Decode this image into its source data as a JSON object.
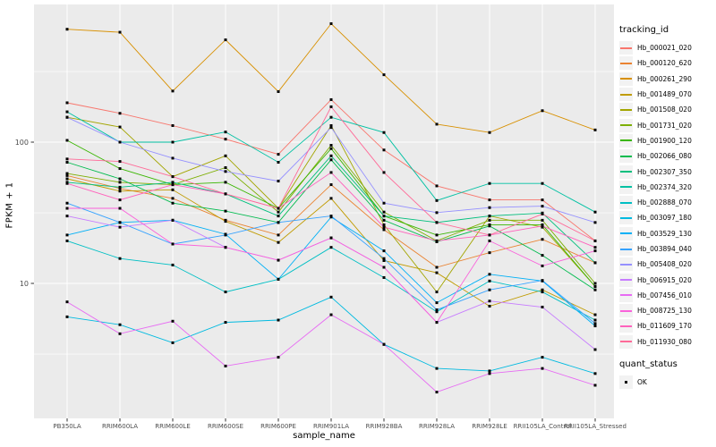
{
  "legend": {
    "tracking_title": "tracking_id",
    "quant_title": "quant_status",
    "quant_items": [
      {
        "label": "OK",
        "marker": "black-square-icon"
      }
    ]
  },
  "chart_data": {
    "type": "line",
    "title": "",
    "xlabel": "sample_name",
    "ylabel": "FPKM + 1",
    "y_scale": "log10",
    "ylim": [
      1.1,
      944
    ],
    "grid": "on",
    "legend_position": "right",
    "panel_bg": "#EBEBEB",
    "grid_color": "#FFFFFF",
    "tick_color": "#333333",
    "tick_label_color": "#4D4D4D",
    "point_marker": "small-black-square",
    "y_tick_labels": [
      {
        "value": 100,
        "label": "100"
      },
      {
        "value": 10,
        "label": "10"
      }
    ],
    "y_major_gridlines": [
      100,
      10
    ],
    "y_minor_gridlines": [
      316,
      31.6,
      3.16
    ],
    "x_categories": [
      "PB350LA",
      "RRIM600LA",
      "RRIM600LE",
      "RRIM600SE",
      "RRIM600PE",
      "RRIM901LA",
      "RRIM928BA",
      "RRIM928LA",
      "RRIM928LE",
      "RRII105LA_Control",
      "RRII105LA_Stressed"
    ],
    "series": [
      {
        "name": "Hb_000021_020",
        "color": "#F8766D",
        "values": [
          190,
          160,
          131,
          105,
          82,
          200,
          88,
          49,
          39,
          39,
          20
        ]
      },
      {
        "name": "Hb_000120_620",
        "color": "#EA8331",
        "values": [
          58,
          47,
          40,
          28,
          22,
          50,
          24,
          13,
          16.5,
          20.5,
          14
        ]
      },
      {
        "name": "Hb_000261_290",
        "color": "#D89000",
        "values": [
          630,
          600,
          230,
          530,
          228,
          690,
          300,
          134,
          117,
          167,
          122
        ]
      },
      {
        "name": "Hb_001489_070",
        "color": "#C09B00",
        "values": [
          55,
          45,
          46,
          27.5,
          19.5,
          40,
          14.5,
          11.9,
          6.9,
          9,
          6
        ]
      },
      {
        "name": "Hb_001508_020",
        "color": "#A3A500",
        "values": [
          150,
          128,
          57,
          80,
          34,
          131,
          26,
          8.7,
          30,
          25,
          9.5
        ]
      },
      {
        "name": "Hb_001731_020",
        "color": "#7CAE00",
        "values": [
          60,
          52,
          50,
          66,
          32,
          95,
          32,
          20,
          28,
          28,
          10
        ]
      },
      {
        "name": "Hb_001900_120",
        "color": "#39B600",
        "values": [
          103,
          65,
          50,
          52,
          34,
          90,
          30,
          22,
          26,
          26,
          9.5
        ]
      },
      {
        "name": "Hb_002066_080",
        "color": "#00BB4E",
        "values": [
          72,
          55,
          37,
          32.5,
          27,
          75,
          28,
          19.7,
          25.5,
          15.8,
          9
        ]
      },
      {
        "name": "Hb_002307_350",
        "color": "#00BF7D",
        "values": [
          52,
          48,
          52,
          43,
          30,
          80,
          30,
          27,
          30,
          31.5,
          14
        ]
      },
      {
        "name": "Hb_002374_320",
        "color": "#00C1A3",
        "values": [
          164,
          100,
          100,
          118,
          72,
          150,
          117,
          38.6,
          51,
          51,
          32
        ]
      },
      {
        "name": "Hb_002888_070",
        "color": "#00BFC4",
        "values": [
          20,
          15,
          13.5,
          8.7,
          10.7,
          18,
          11,
          6.3,
          10.4,
          8.7,
          5.5
        ]
      },
      {
        "name": "Hb_003097_180",
        "color": "#00BAE0",
        "values": [
          5.8,
          5.1,
          3.8,
          5.3,
          5.5,
          8,
          3.7,
          2.5,
          2.4,
          3,
          2.3
        ]
      },
      {
        "name": "Hb_003529_130",
        "color": "#00B0F6",
        "values": [
          22,
          27,
          28,
          22.3,
          10.7,
          29.5,
          17,
          7.3,
          11.6,
          10.4,
          5
        ]
      },
      {
        "name": "Hb_003894_040",
        "color": "#35A2FF",
        "values": [
          37,
          27,
          19,
          22,
          27,
          30,
          15,
          6.5,
          9,
          10.5,
          5.2
        ]
      },
      {
        "name": "Hb_005408_020",
        "color": "#9590FF",
        "values": [
          150,
          100,
          77,
          62,
          53,
          127,
          37,
          31.7,
          34.4,
          35.2,
          27
        ]
      },
      {
        "name": "Hb_006915_020",
        "color": "#C77CFF",
        "values": [
          30,
          25,
          28,
          18,
          14.6,
          21,
          13,
          5.3,
          7.5,
          6.8,
          3.4
        ]
      },
      {
        "name": "Hb_007456_010",
        "color": "#E76BF3",
        "values": [
          7.4,
          4.4,
          5.4,
          2.6,
          3,
          6,
          3.7,
          1.7,
          2.3,
          2.5,
          1.9
        ]
      },
      {
        "name": "Hb_008725_130",
        "color": "#FA62DB",
        "values": [
          34,
          34,
          19,
          18,
          14.6,
          21,
          13,
          5.3,
          20,
          13.3,
          17
        ]
      },
      {
        "name": "Hb_011609_170",
        "color": "#FF62BC",
        "values": [
          51,
          39,
          50,
          43,
          34,
          61,
          25,
          20,
          22,
          25.5,
          18
        ]
      },
      {
        "name": "Hb_011930_080",
        "color": "#FF6A98",
        "values": [
          76,
          73,
          57,
          43,
          34,
          178,
          61,
          27,
          22,
          31,
          20
        ]
      }
    ]
  }
}
